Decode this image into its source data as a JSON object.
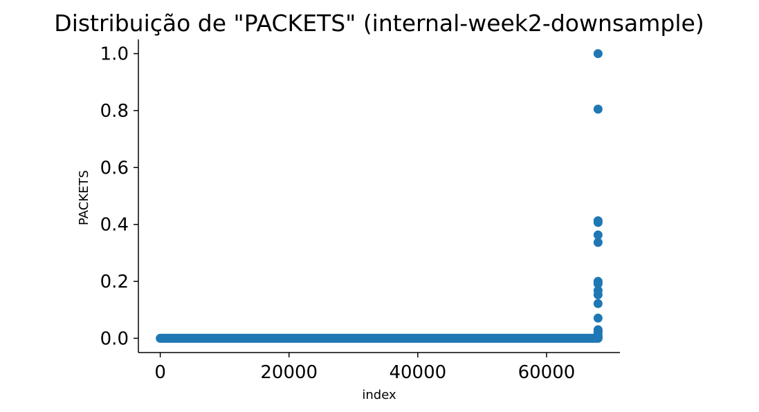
{
  "chart_data": {
    "type": "scatter",
    "title": "Distribuição de \"PACKETS\" (internal-week2-downsample)",
    "xlabel": "index",
    "ylabel": "PACKETS",
    "xlim": [
      -3400,
      71400
    ],
    "ylim": [
      -0.05,
      1.05
    ],
    "xticks": [
      0,
      20000,
      40000,
      60000
    ],
    "xtick_labels": [
      "0",
      "20000",
      "40000",
      "60000"
    ],
    "yticks": [
      0.0,
      0.2,
      0.4,
      0.6,
      0.8,
      1.0
    ],
    "ytick_labels": [
      "0.0",
      "0.2",
      "0.4",
      "0.6",
      "0.8",
      "1.0"
    ],
    "grid": false,
    "marker_color": "#1f77b4",
    "baseline": {
      "x_range": [
        0,
        68000
      ],
      "y": 0.0,
      "approx_count": 68000
    },
    "series": [
      {
        "x": [
          68000,
          68000,
          68000,
          68000,
          68000,
          68000,
          68000,
          68000,
          68000,
          68000,
          68000,
          68000,
          68000,
          68000,
          68000,
          68000,
          68000,
          68000
        ],
        "y": [
          1.0,
          0.805,
          0.413,
          0.407,
          0.363,
          0.337,
          0.2,
          0.192,
          0.168,
          0.153,
          0.122,
          0.071,
          0.03,
          0.025,
          0.018,
          0.01,
          0.006,
          0.002
        ]
      }
    ]
  }
}
